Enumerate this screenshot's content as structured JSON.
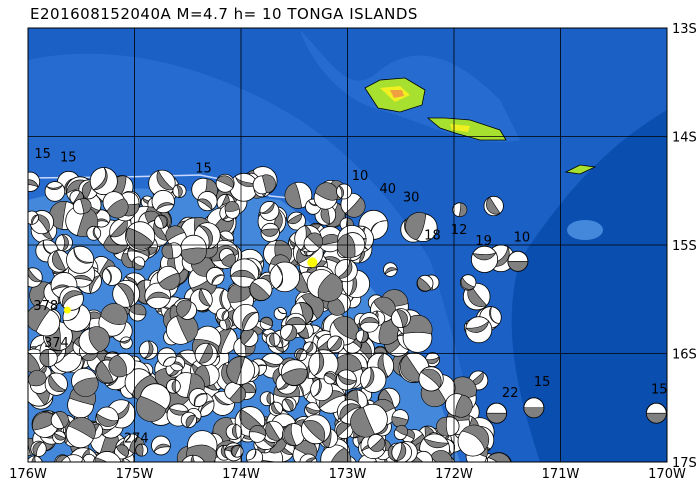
{
  "title": "E201608152040A  M=4.7  h=  10 TONGA ISLANDS",
  "region": {
    "lon": [
      -176,
      -170
    ],
    "lat": [
      -17,
      -13
    ]
  },
  "x_ticks": [
    "176W",
    "175W",
    "174W",
    "173W",
    "172W",
    "171W",
    "170W"
  ],
  "y_ticks": [
    "13S",
    "14S",
    "15S",
    "16S",
    "17S"
  ],
  "colors": {
    "ocean_deep": "#0a4fb0",
    "ocean_mid": "#1c62c8",
    "ocean_shallow": "#4a8fe0",
    "land_green": "#a8e030",
    "land_yellow": "#f0f020",
    "land_orange": "#f0a040",
    "mechanism_shade": "#808080",
    "epicenter": "#ffff00",
    "trench": "#c8d8ff"
  },
  "epicenter": {
    "lon": -173.33,
    "lat": -15.16
  },
  "secondary_marker": {
    "lon": -175.63,
    "lat": -15.6
  },
  "event_labels": [
    {
      "text": "15",
      "lon": -175.94,
      "lat": -14.2
    },
    {
      "text": "15",
      "lon": -175.7,
      "lat": -14.23
    },
    {
      "text": "15",
      "lon": -174.43,
      "lat": -14.33
    },
    {
      "text": "10",
      "lon": -172.96,
      "lat": -14.4
    },
    {
      "text": "40",
      "lon": -172.7,
      "lat": -14.52
    },
    {
      "text": "30",
      "lon": -172.48,
      "lat": -14.6
    },
    {
      "text": "18",
      "lon": -172.28,
      "lat": -14.95
    },
    {
      "text": "12",
      "lon": -172.03,
      "lat": -14.9
    },
    {
      "text": "19",
      "lon": -171.8,
      "lat": -15.0
    },
    {
      "text": "10",
      "lon": -171.44,
      "lat": -14.97
    },
    {
      "text": "378",
      "lon": -175.95,
      "lat": -15.6
    },
    {
      "text": "374",
      "lon": -175.85,
      "lat": -15.94
    },
    {
      "text": "274",
      "lon": -175.1,
      "lat": -16.82
    },
    {
      "text": "22",
      "lon": -171.55,
      "lat": -16.4
    },
    {
      "text": "15",
      "lon": -171.25,
      "lat": -16.3
    },
    {
      "text": "15",
      "lon": -170.15,
      "lat": -16.37
    }
  ]
}
